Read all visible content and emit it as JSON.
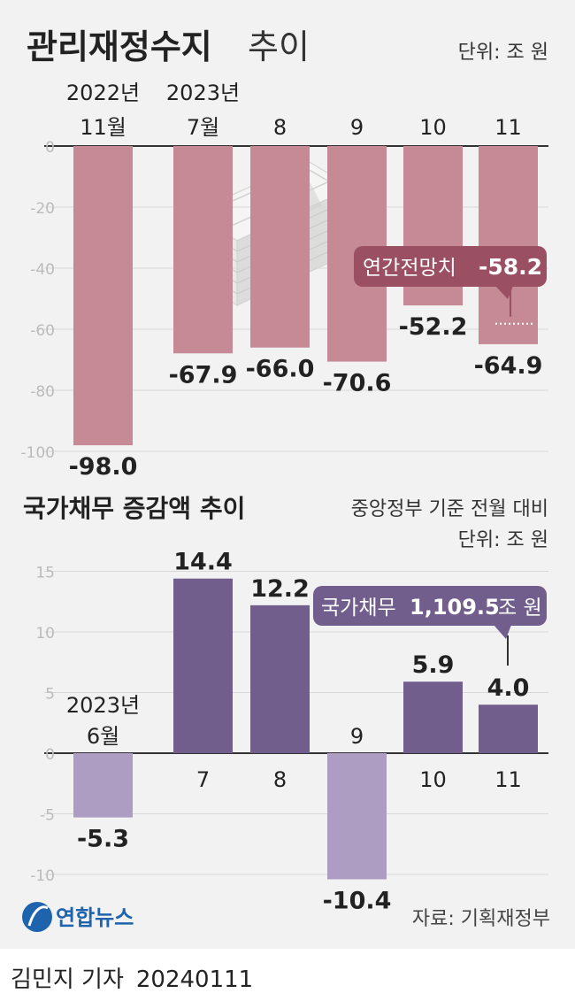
{
  "chart_data": [
    {
      "type": "bar",
      "title": "관리재정수지",
      "title_suffix": "추이",
      "unit": "단위: 조 원",
      "categories": [
        {
          "year": "2022년",
          "month": "11월"
        },
        {
          "year": "2023년",
          "month": "7월"
        },
        {
          "year": "",
          "month": "8"
        },
        {
          "year": "",
          "month": "9"
        },
        {
          "year": "",
          "month": "10"
        },
        {
          "year": "",
          "month": "11"
        }
      ],
      "values": [
        -98.0,
        -67.9,
        -66.0,
        -70.6,
        -52.2,
        -64.9
      ],
      "value_labels": [
        "-98.0",
        "-67.9",
        "-66.0",
        "-70.6",
        "-52.2",
        "-64.9"
      ],
      "yticks": [
        "0",
        "-20",
        "-40",
        "-60",
        "-80",
        "-100"
      ],
      "ylim": [
        -100,
        0
      ],
      "annotation": {
        "label": "연간전망치",
        "value_text": "-58.2",
        "value": -58.2
      },
      "colors": {
        "bar": "#c58a96",
        "annotation": "#9b4f63"
      }
    },
    {
      "type": "bar",
      "title": "국가채무 증감액 추이",
      "subtitle": "중앙정부 기준 전월 대비",
      "unit": "단위: 조 원",
      "categories": [
        {
          "year": "2023년",
          "month": "6월"
        },
        {
          "year": "",
          "month": "7"
        },
        {
          "year": "",
          "month": "8"
        },
        {
          "year": "",
          "month": "9"
        },
        {
          "year": "",
          "month": "10"
        },
        {
          "year": "",
          "month": "11"
        }
      ],
      "values": [
        -5.3,
        14.4,
        12.2,
        -10.4,
        5.9,
        4.0
      ],
      "value_labels": [
        "-5.3",
        "14.4",
        "12.2",
        "-10.4",
        "5.9",
        "4.0"
      ],
      "yticks": [
        "15",
        "10",
        "5",
        "0",
        "-5",
        "-10"
      ],
      "ylim": [
        -10.4,
        15
      ],
      "annotation": {
        "label": "국가채무",
        "value_text": "1,109.5",
        "unit": "조 원"
      },
      "colors": {
        "positive": "#725e8d",
        "negative": "#ad9dc2",
        "annotation": "#725e8d"
      }
    }
  ],
  "source": "자료: 기획재정부",
  "logo_text": "연합뉴스",
  "byline": {
    "author": "김민지 기자",
    "date": "20240111"
  }
}
